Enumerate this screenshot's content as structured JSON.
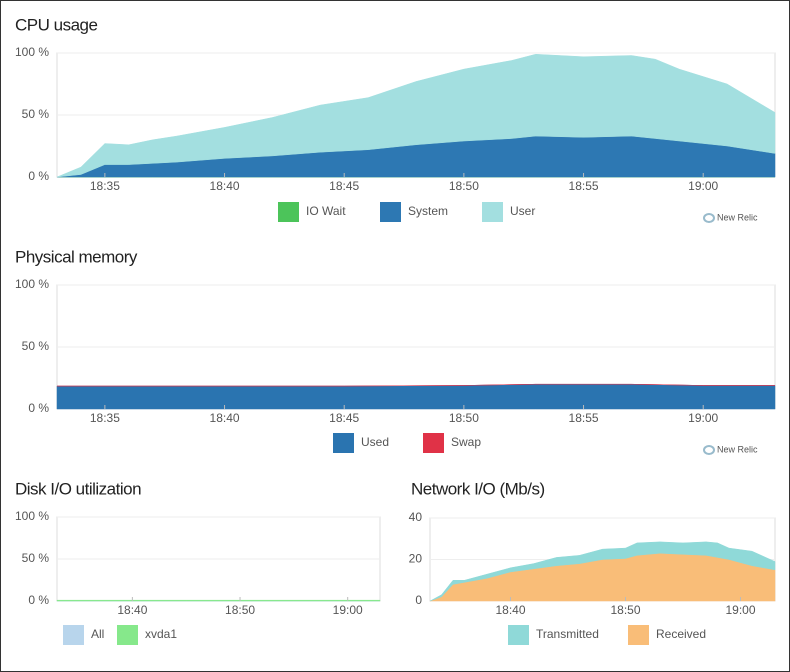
{
  "chart_data": [
    {
      "type": "area",
      "title": "CPU usage",
      "watermark": "New Relic",
      "x": [
        "18:33",
        "18:34",
        "18:35",
        "18:36",
        "18:37",
        "18:38",
        "18:40",
        "18:42",
        "18:44",
        "18:46",
        "18:48",
        "18:50",
        "18:52",
        "18:53",
        "18:55",
        "18:57",
        "18:58",
        "18:59",
        "19:01",
        "19:03"
      ],
      "series": [
        {
          "name": "IO Wait",
          "color": "#4cc45a",
          "values": [
            0,
            0,
            0,
            0,
            0,
            0,
            0,
            0,
            0,
            0,
            0,
            0,
            0,
            0,
            0,
            0,
            0,
            0,
            0,
            0
          ]
        },
        {
          "name": "System",
          "color": "#2d78b3",
          "values": [
            0,
            2,
            10,
            10,
            11,
            12,
            15,
            17,
            20,
            22,
            26,
            29,
            31,
            33,
            32,
            33,
            31,
            29,
            25,
            19
          ]
        },
        {
          "name": "User",
          "color": "#a3dfe0",
          "values": [
            0,
            6,
            17,
            16,
            19,
            21,
            25,
            31,
            38,
            42,
            51,
            58,
            63,
            66,
            65,
            65,
            64,
            58,
            50,
            33
          ]
        }
      ],
      "xlim": [
        "18:33",
        "19:03"
      ],
      "xticks": [
        "18:35",
        "18:40",
        "18:45",
        "18:50",
        "18:55",
        "19:00"
      ],
      "ylim": [
        0,
        100
      ],
      "yticks": [
        {
          "value": 0,
          "label": "0 %"
        },
        {
          "value": 50,
          "label": "50 %"
        },
        {
          "value": 100,
          "label": "100 %"
        }
      ],
      "grid": true
    },
    {
      "type": "area",
      "title": "Physical memory",
      "watermark": "New Relic",
      "x": [
        "18:33",
        "18:40",
        "18:45",
        "18:50",
        "18:53",
        "18:57",
        "19:00",
        "19:03"
      ],
      "series": [
        {
          "name": "Used",
          "color": "#2a74b0",
          "values": [
            18.5,
            18.5,
            18.5,
            19,
            20,
            20,
            19,
            19
          ]
        },
        {
          "name": "Swap",
          "color": "#e03247",
          "values": [
            0,
            0,
            0,
            0,
            0,
            0,
            0,
            0
          ]
        }
      ],
      "xlim": [
        "18:33",
        "19:03"
      ],
      "xticks": [
        "18:35",
        "18:40",
        "18:45",
        "18:50",
        "18:55",
        "19:00"
      ],
      "ylim": [
        0,
        100
      ],
      "yticks": [
        {
          "value": 0,
          "label": "0 %"
        },
        {
          "value": 50,
          "label": "50 %"
        },
        {
          "value": 100,
          "label": "100 %"
        }
      ],
      "grid": true
    },
    {
      "type": "area",
      "title": "Disk I/O utilization",
      "x": [
        "18:33",
        "18:40",
        "18:45",
        "18:50",
        "18:55",
        "19:00",
        "19:03"
      ],
      "series": [
        {
          "name": "All",
          "color": "#b8d5ec",
          "values": [
            0,
            0,
            0,
            0,
            0,
            0,
            0
          ]
        },
        {
          "name": "xvda1",
          "color": "#86e88b",
          "values": [
            1,
            1,
            1,
            1,
            1,
            1,
            1
          ]
        }
      ],
      "xlim": [
        "18:33",
        "19:03"
      ],
      "xticks": [
        "18:40",
        "18:50",
        "19:00"
      ],
      "ylim": [
        0,
        100
      ],
      "yticks": [
        {
          "value": 0,
          "label": "0 %"
        },
        {
          "value": 50,
          "label": "50 %"
        },
        {
          "value": 100,
          "label": "100 %"
        }
      ],
      "grid": true
    },
    {
      "type": "area",
      "title": "Network I/O (Mb/s)",
      "x": [
        "18:33",
        "18:34",
        "18:35",
        "18:36",
        "18:38",
        "18:40",
        "18:42",
        "18:44",
        "18:46",
        "18:48",
        "18:50",
        "18:51",
        "18:53",
        "18:55",
        "18:57",
        "18:58",
        "18:59",
        "19:01",
        "19:03"
      ],
      "series": [
        {
          "name": "Received",
          "color": "#f9bd78",
          "values": [
            0,
            2,
            8,
            9,
            11,
            14,
            15.5,
            17,
            18,
            20,
            20.5,
            22,
            23,
            22.5,
            22,
            21,
            20,
            17,
            15
          ]
        },
        {
          "name": "Transmitted",
          "color": "#8fd9d8",
          "values": [
            0,
            1,
            2,
            1,
            2,
            2,
            2.5,
            4,
            4,
            5,
            5,
            6,
            5.5,
            5.5,
            6.5,
            7,
            5.5,
            7,
            4
          ]
        }
      ],
      "legend_order": [
        "Transmitted",
        "Received"
      ],
      "xlim": [
        "18:33",
        "19:03"
      ],
      "xticks": [
        "18:40",
        "18:50",
        "19:00"
      ],
      "ylim": [
        0,
        40
      ],
      "yticks": [
        0,
        20,
        40
      ],
      "grid": true
    }
  ]
}
